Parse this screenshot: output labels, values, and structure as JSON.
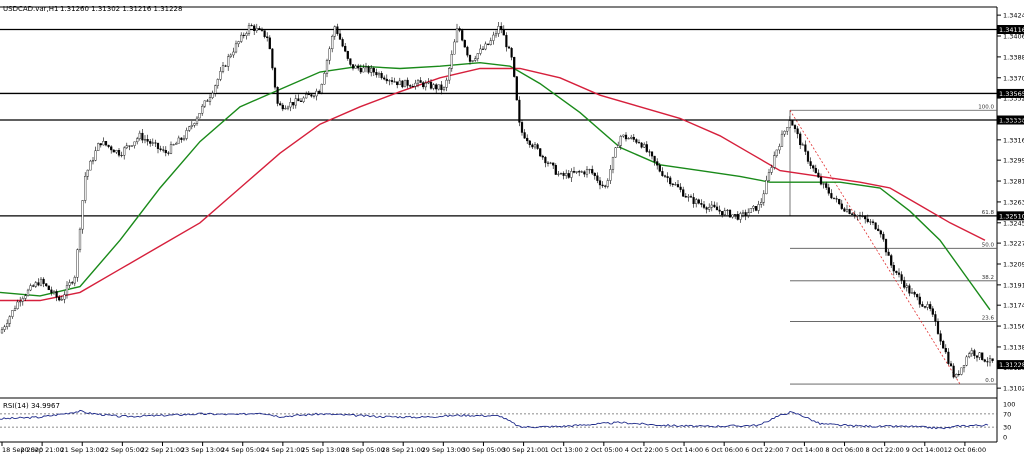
{
  "header": {
    "title": "USDCAD.var,H1",
    "ohlc": "1.31260 1.31302 1.31216 1.31228"
  },
  "rsi_label": "RSI(14) 34.9967",
  "chart_data": {
    "type": "candlestick",
    "symbol": "USDCAD.var",
    "timeframe": "H1",
    "y_axis": {
      "ticks": [
        "1.34240",
        "1.34060",
        "1.33880",
        "1.33700",
        "1.33525",
        "1.33345",
        "1.33165",
        "1.32990",
        "1.32810",
        "1.32630",
        "1.32450",
        "1.32275",
        "1.32095",
        "1.31915",
        "1.31740",
        "1.31560",
        "1.31380",
        "1.31205",
        "1.31025"
      ],
      "range": [
        1.3094,
        1.3431
      ]
    },
    "x_axis": {
      "ticks": [
        "18 Sep 2020",
        "20 Sep 21:00",
        "21 Sep 13:00",
        "22 Sep 05:00",
        "22 Sep 21:00",
        "23 Sep 13:00",
        "24 Sep 05:00",
        "24 Sep 21:00",
        "25 Sep 13:00",
        "28 Sep 05:00",
        "28 Sep 21:00",
        "29 Sep 13:00",
        "30 Sep 05:00",
        "30 Sep 21:00",
        "1 Oct 13:00",
        "2 Oct 05:00",
        "4 Oct 22:00",
        "5 Oct 14:00",
        "6 Oct 06:00",
        "6 Oct 22:00",
        "7 Oct 14:00",
        "8 Oct 06:00",
        "8 Oct 22:00",
        "9 Oct 14:00",
        "12 Oct 06:00"
      ]
    },
    "horizontal_levels": [
      {
        "value": 1.34116,
        "label": "1.34116"
      },
      {
        "value": 1.33565,
        "label": "1.33565"
      },
      {
        "value": 1.33336,
        "label": "1.33336"
      },
      {
        "value": 1.3251,
        "label": "1.32510"
      }
    ],
    "current_price": {
      "value": 1.31228,
      "label": "1.31228"
    },
    "fibonacci": [
      {
        "level": "100.0",
        "value": 1.3342
      },
      {
        "level": "61.8",
        "value": 1.3251
      },
      {
        "level": "50.0",
        "value": 1.3223
      },
      {
        "level": "38.2",
        "value": 1.3195
      },
      {
        "level": "23.6",
        "value": 1.316
      },
      {
        "level": "0.0",
        "value": 1.3106
      }
    ],
    "series": [
      {
        "name": "SMA 50",
        "color": "#1a8a1a",
        "points": [
          [
            0,
            1.3185
          ],
          [
            40,
            1.3182
          ],
          [
            80,
            1.319
          ],
          [
            120,
            1.323
          ],
          [
            160,
            1.3275
          ],
          [
            200,
            1.3315
          ],
          [
            240,
            1.3345
          ],
          [
            280,
            1.336
          ],
          [
            320,
            1.3375
          ],
          [
            360,
            1.338
          ],
          [
            400,
            1.3378
          ],
          [
            440,
            1.338
          ],
          [
            480,
            1.3383
          ],
          [
            510,
            1.338
          ],
          [
            540,
            1.3365
          ],
          [
            580,
            1.334
          ],
          [
            620,
            1.331
          ],
          [
            660,
            1.3295
          ],
          [
            700,
            1.329
          ],
          [
            740,
            1.3285
          ],
          [
            770,
            1.328
          ],
          [
            800,
            1.328
          ],
          [
            840,
            1.328
          ],
          [
            880,
            1.3275
          ],
          [
            910,
            1.3255
          ],
          [
            940,
            1.323
          ],
          [
            965,
            1.32
          ],
          [
            990,
            1.317
          ]
        ]
      },
      {
        "name": "SMA 100",
        "color": "#d6203c",
        "points": [
          [
            0,
            1.3178
          ],
          [
            40,
            1.3178
          ],
          [
            80,
            1.3185
          ],
          [
            120,
            1.3205
          ],
          [
            160,
            1.3225
          ],
          [
            200,
            1.3245
          ],
          [
            240,
            1.3275
          ],
          [
            280,
            1.3305
          ],
          [
            320,
            1.333
          ],
          [
            360,
            1.3345
          ],
          [
            400,
            1.3358
          ],
          [
            440,
            1.337
          ],
          [
            480,
            1.3378
          ],
          [
            520,
            1.3378
          ],
          [
            560,
            1.337
          ],
          [
            600,
            1.3355
          ],
          [
            640,
            1.3345
          ],
          [
            680,
            1.3335
          ],
          [
            720,
            1.332
          ],
          [
            750,
            1.3305
          ],
          [
            780,
            1.329
          ],
          [
            820,
            1.3285
          ],
          [
            860,
            1.328
          ],
          [
            890,
            1.3275
          ],
          [
            920,
            1.326
          ],
          [
            950,
            1.3245
          ],
          [
            985,
            1.323
          ]
        ]
      }
    ],
    "price_path": [
      [
        0,
        1.315
      ],
      [
        20,
        1.318
      ],
      [
        40,
        1.3195
      ],
      [
        60,
        1.3178
      ],
      [
        75,
        1.32
      ],
      [
        85,
        1.3285
      ],
      [
        100,
        1.3315
      ],
      [
        120,
        1.3305
      ],
      [
        140,
        1.332
      ],
      [
        165,
        1.3305
      ],
      [
        185,
        1.332
      ],
      [
        210,
        1.3355
      ],
      [
        230,
        1.339
      ],
      [
        250,
        1.3415
      ],
      [
        268,
        1.3405
      ],
      [
        278,
        1.3345
      ],
      [
        300,
        1.335
      ],
      [
        320,
        1.336
      ],
      [
        335,
        1.3415
      ],
      [
        350,
        1.338
      ],
      [
        375,
        1.3375
      ],
      [
        400,
        1.3365
      ],
      [
        420,
        1.3365
      ],
      [
        445,
        1.336
      ],
      [
        458,
        1.3415
      ],
      [
        470,
        1.3385
      ],
      [
        490,
        1.34
      ],
      [
        500,
        1.3415
      ],
      [
        512,
        1.3385
      ],
      [
        520,
        1.3325
      ],
      [
        540,
        1.3305
      ],
      [
        560,
        1.3285
      ],
      [
        590,
        1.329
      ],
      [
        605,
        1.3275
      ],
      [
        620,
        1.332
      ],
      [
        640,
        1.3315
      ],
      [
        660,
        1.329
      ],
      [
        690,
        1.3265
      ],
      [
        720,
        1.3255
      ],
      [
        740,
        1.325
      ],
      [
        760,
        1.326
      ],
      [
        775,
        1.3305
      ],
      [
        790,
        1.3335
      ],
      [
        805,
        1.3305
      ],
      [
        820,
        1.328
      ],
      [
        840,
        1.326
      ],
      [
        860,
        1.325
      ],
      [
        880,
        1.324
      ],
      [
        890,
        1.321
      ],
      [
        910,
        1.3185
      ],
      [
        930,
        1.317
      ],
      [
        945,
        1.3135
      ],
      [
        955,
        1.311
      ],
      [
        970,
        1.3135
      ],
      [
        990,
        1.3125
      ]
    ],
    "rsi": {
      "period": 14,
      "value": 34.9967,
      "levels": [
        70,
        30
      ],
      "ticks": [
        "100",
        "70",
        "30",
        "0"
      ],
      "points": [
        [
          0,
          55
        ],
        [
          40,
          60
        ],
        [
          80,
          78
        ],
        [
          90,
          72
        ],
        [
          120,
          62
        ],
        [
          160,
          65
        ],
        [
          200,
          70
        ],
        [
          240,
          68
        ],
        [
          260,
          74
        ],
        [
          280,
          62
        ],
        [
          320,
          70
        ],
        [
          350,
          66
        ],
        [
          380,
          62
        ],
        [
          420,
          60
        ],
        [
          460,
          66
        ],
        [
          500,
          64
        ],
        [
          520,
          30
        ],
        [
          560,
          32
        ],
        [
          600,
          40
        ],
        [
          620,
          44
        ],
        [
          660,
          36
        ],
        [
          700,
          32
        ],
        [
          740,
          34
        ],
        [
          760,
          36
        ],
        [
          775,
          60
        ],
        [
          790,
          75
        ],
        [
          800,
          68
        ],
        [
          820,
          40
        ],
        [
          850,
          34
        ],
        [
          880,
          32
        ],
        [
          910,
          32
        ],
        [
          945,
          26
        ],
        [
          960,
          34
        ],
        [
          985,
          36
        ]
      ]
    }
  }
}
